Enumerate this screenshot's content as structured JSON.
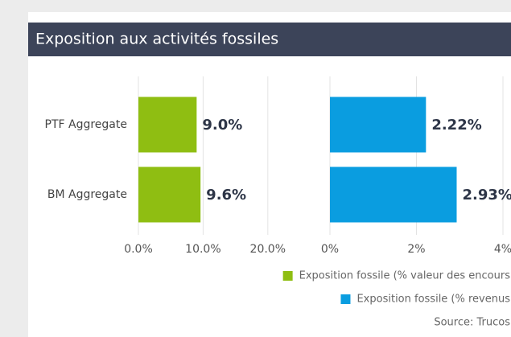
{
  "title": "Exposition aux activités fossiles",
  "source": "Source: Trucos",
  "chart_data": [
    {
      "type": "bar",
      "orientation": "horizontal",
      "categories": [
        "PTF Aggregate",
        "BM Aggregate"
      ],
      "series": [
        {
          "name": "Exposition fossile (% valeur des encours",
          "color": "#8fbe12",
          "values": [
            9.0,
            9.6
          ],
          "value_labels": [
            "9.0%",
            "9.6%"
          ]
        }
      ],
      "xlim": [
        0,
        25
      ],
      "xticks": [
        {
          "value": 0,
          "label": "0.0%"
        },
        {
          "value": 10,
          "label": "10.0%"
        },
        {
          "value": 20,
          "label": "20.0%"
        }
      ],
      "grid": true
    },
    {
      "type": "bar",
      "orientation": "horizontal",
      "categories": [
        null,
        null
      ],
      "series": [
        {
          "name": "Exposition fossile (% revenus",
          "color": "#0a9de0",
          "values": [
            2.22,
            2.93
          ],
          "value_labels": [
            "2.22%",
            "2.93%"
          ]
        }
      ],
      "xlim": [
        0,
        4
      ],
      "xticks": [
        {
          "value": 0,
          "label": "0%"
        },
        {
          "value": 2,
          "label": "2%"
        },
        {
          "value": 4,
          "label": "4%"
        }
      ],
      "grid": true
    }
  ]
}
